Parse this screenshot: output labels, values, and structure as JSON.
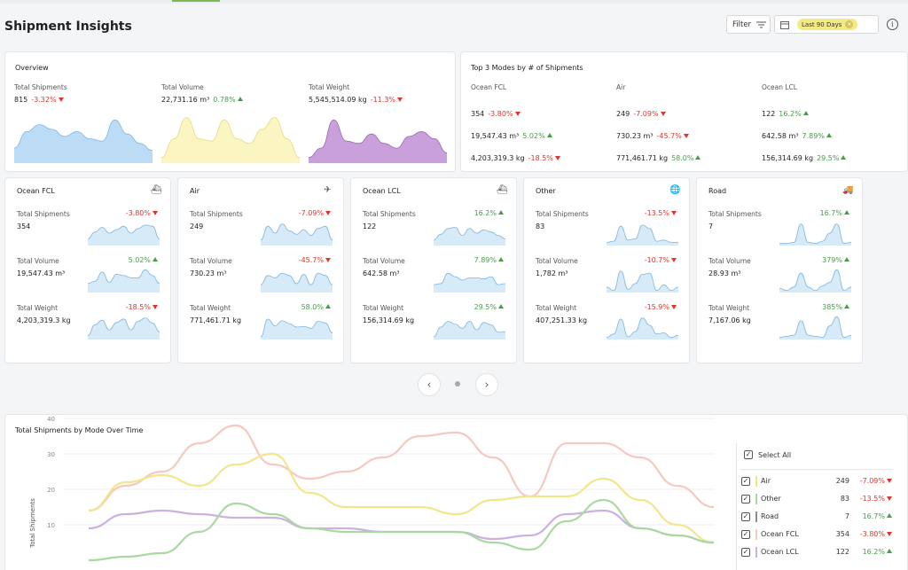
{
  "header": {
    "title": "Shipment Insights",
    "filter_label": "Filter",
    "date_range": "Last 90 Days"
  },
  "overview": {
    "title": "Overview",
    "metrics": [
      {
        "label": "Total Shipments",
        "value": "815",
        "change": "-3.32%",
        "trend": "down",
        "color": "#bcdcf5"
      },
      {
        "label": "Total Volume",
        "value": "22,731.16 m³",
        "change": "0.78%",
        "trend": "up",
        "color": "#fbf5c2"
      },
      {
        "label": "Total Weight",
        "value": "5,545,514.09 kg",
        "change": "-11.3%",
        "trend": "down",
        "color": "#c9a0dc"
      }
    ]
  },
  "top_modes": {
    "title": "Top 3 Modes by # of Shipments",
    "modes": [
      {
        "name": "Ocean FCL",
        "rows": [
          {
            "value": "354",
            "change": "-3.80%",
            "trend": "down"
          },
          {
            "value": "19,547.43 m³",
            "change": "5.02%",
            "trend": "up"
          },
          {
            "value": "4,203,319.3 kg",
            "change": "-18.5%",
            "trend": "down"
          }
        ]
      },
      {
        "name": "Air",
        "rows": [
          {
            "value": "249",
            "change": "-7.09%",
            "trend": "down"
          },
          {
            "value": "730.23 m³",
            "change": "-45.7%",
            "trend": "down"
          },
          {
            "value": "771,461.71 kg",
            "change": "58.0%",
            "trend": "up"
          }
        ]
      },
      {
        "name": "Ocean LCL",
        "rows": [
          {
            "value": "122",
            "change": "16.2%",
            "trend": "up"
          },
          {
            "value": "642.58 m³",
            "change": "7.89%",
            "trend": "up"
          },
          {
            "value": "156,314.69 kg",
            "change": "29.5%",
            "trend": "up"
          }
        ]
      }
    ]
  },
  "mode_cards": [
    {
      "name": "Ocean FCL",
      "icon": "container-ship-icon",
      "glyph": "⛴",
      "metrics": [
        {
          "label": "Total Shipments",
          "value": "354",
          "change": "-3.80%",
          "trend": "down"
        },
        {
          "label": "Total Volume",
          "value": "19,547.43 m³",
          "change": "5.02%",
          "trend": "up"
        },
        {
          "label": "Total Weight",
          "value": "4,203,319.3 kg",
          "change": "-18.5%",
          "trend": "down"
        }
      ]
    },
    {
      "name": "Air",
      "icon": "airplane-icon",
      "glyph": "✈",
      "metrics": [
        {
          "label": "Total Shipments",
          "value": "249",
          "change": "-7.09%",
          "trend": "down"
        },
        {
          "label": "Total Volume",
          "value": "730.23 m³",
          "change": "-45.7%",
          "trend": "down"
        },
        {
          "label": "Total Weight",
          "value": "771,461.71 kg",
          "change": "58.0%",
          "trend": "up"
        }
      ]
    },
    {
      "name": "Ocean LCL",
      "icon": "cargo-ship-icon",
      "glyph": "⛴",
      "metrics": [
        {
          "label": "Total Shipments",
          "value": "122",
          "change": "16.2%",
          "trend": "up"
        },
        {
          "label": "Total Volume",
          "value": "642.58 m³",
          "change": "7.89%",
          "trend": "up"
        },
        {
          "label": "Total Weight",
          "value": "156,314.69 kg",
          "change": "29.5%",
          "trend": "up"
        }
      ]
    },
    {
      "name": "Other",
      "icon": "globe-icon",
      "glyph": "🌐",
      "metrics": [
        {
          "label": "Total Shipments",
          "value": "83",
          "change": "-13.5%",
          "trend": "down"
        },
        {
          "label": "Total Volume",
          "value": "1,782 m³",
          "change": "-10.7%",
          "trend": "down"
        },
        {
          "label": "Total Weight",
          "value": "407,251.33 kg",
          "change": "-15.9%",
          "trend": "down"
        }
      ]
    },
    {
      "name": "Road",
      "icon": "truck-icon",
      "glyph": "🚚",
      "metrics": [
        {
          "label": "Total Shipments",
          "value": "7",
          "change": "16.7%",
          "trend": "up"
        },
        {
          "label": "Total Volume",
          "value": "28.93 m³",
          "change": "379%",
          "trend": "up"
        },
        {
          "label": "Total Weight",
          "value": "7,167.06 kg",
          "change": "385%",
          "trend": "up"
        }
      ]
    }
  ],
  "pager": {
    "prev": "‹",
    "next": "›"
  },
  "trend_chart": {
    "title": "Total Shipments by Mode Over Time",
    "ylabel": "Total Shipments",
    "yticks": [
      "40",
      "30",
      "20",
      "10"
    ],
    "select_all": "Select All",
    "legend": [
      {
        "name": "Air",
        "count": "249",
        "change": "-7.09%",
        "trend": "down",
        "color": "#f1e68a"
      },
      {
        "name": "Other",
        "count": "83",
        "change": "-13.5%",
        "trend": "down",
        "color": "#a9d9a0"
      },
      {
        "name": "Road",
        "count": "7",
        "change": "16.7%",
        "trend": "up",
        "color": "#8c8c8c"
      },
      {
        "name": "Ocean FCL",
        "count": "354",
        "change": "-3.80%",
        "trend": "down",
        "color": "#f5c9c0"
      },
      {
        "name": "Ocean LCL",
        "count": "122",
        "change": "16.2%",
        "trend": "up",
        "color": "#cdb0e2"
      }
    ]
  },
  "chart_data": {
    "type": "line",
    "title": "Total Shipments by Mode Over Time",
    "ylabel": "Total Shipments",
    "ylim": [
      0,
      40
    ],
    "series": [
      {
        "name": "Ocean FCL",
        "color": "#f5c9c0",
        "values": [
          14,
          21,
          25,
          33,
          38,
          27,
          23,
          25,
          29,
          35,
          36,
          29,
          18,
          33,
          33,
          29,
          21,
          15
        ]
      },
      {
        "name": "Air",
        "color": "#f1e68a",
        "values": [
          14,
          22,
          24,
          21,
          27,
          30,
          19,
          15,
          15,
          15,
          13,
          17,
          18,
          18,
          23,
          17,
          10,
          5
        ]
      },
      {
        "name": "Ocean LCL",
        "color": "#cdb0e2",
        "values": [
          9,
          13,
          14,
          13,
          12,
          12,
          9,
          9,
          8,
          8,
          8,
          6,
          7,
          13,
          14,
          9,
          7,
          5
        ]
      },
      {
        "name": "Other",
        "color": "#a9d9a0",
        "values": [
          0,
          1,
          2,
          8,
          16,
          13,
          9,
          8,
          8,
          8,
          8,
          5,
          3,
          11,
          17,
          9,
          7,
          5
        ]
      }
    ]
  }
}
